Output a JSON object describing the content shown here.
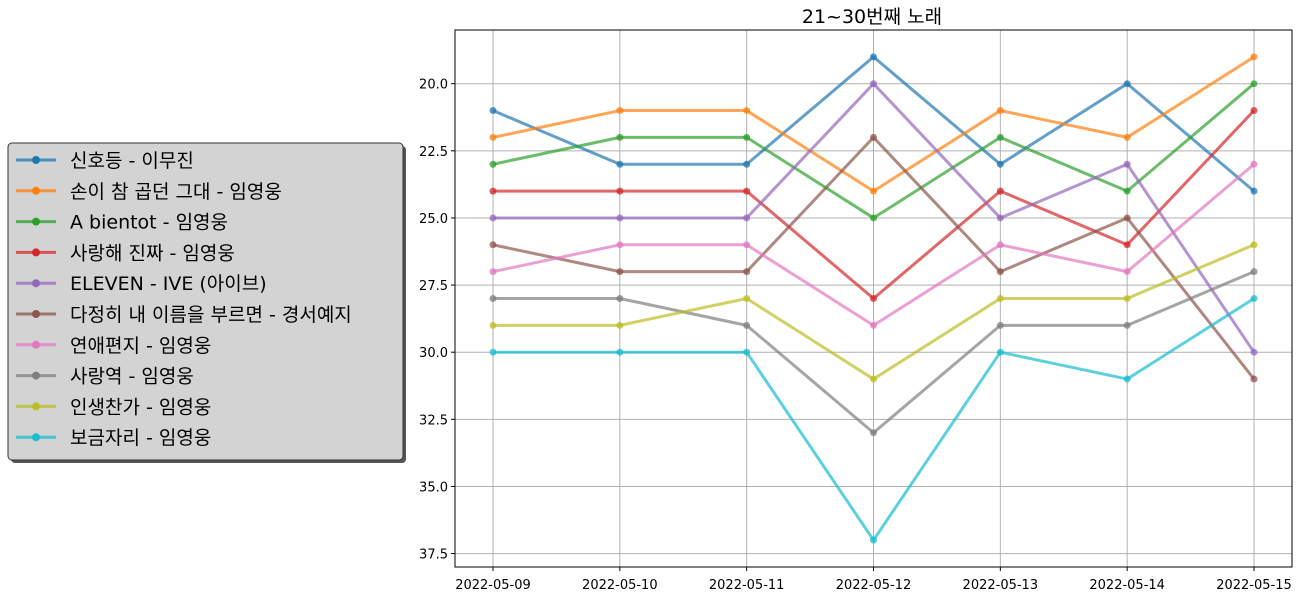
{
  "chart_data": {
    "type": "line",
    "title": "21~30번째 노래",
    "xlabel": "",
    "ylabel": "",
    "y_inverted": true,
    "ylim": [
      38,
      18
    ],
    "yticks": [
      20.0,
      22.5,
      25.0,
      27.5,
      30.0,
      32.5,
      35.0,
      37.5
    ],
    "ytick_labels": [
      "20.0",
      "22.5",
      "25.0",
      "27.5",
      "30.0",
      "32.5",
      "35.0",
      "37.5"
    ],
    "grid": true,
    "legend_placement": "center-left (outside plot)",
    "categories": [
      "2022-05-09",
      "2022-05-10",
      "2022-05-11",
      "2022-05-12",
      "2022-05-13",
      "2022-05-14",
      "2022-05-15"
    ],
    "series": [
      {
        "name": "신호등 - 이무진",
        "color": "#1f77b4",
        "values": [
          21,
          23,
          23,
          19,
          23,
          20,
          24
        ]
      },
      {
        "name": "손이 참 곱던 그대 - 임영웅",
        "color": "#ff7f0e",
        "values": [
          22,
          21,
          21,
          24,
          21,
          22,
          19
        ]
      },
      {
        "name": "A bientot - 임영웅",
        "color": "#2ca02c",
        "values": [
          23,
          22,
          22,
          25,
          22,
          24,
          20
        ]
      },
      {
        "name": "사랑해 진짜 - 임영웅",
        "color": "#d62728",
        "values": [
          24,
          24,
          24,
          28,
          24,
          26,
          21
        ]
      },
      {
        "name": "ELEVEN - IVE (아이브)",
        "color": "#9467bd",
        "values": [
          25,
          25,
          25,
          20,
          25,
          23,
          30
        ]
      },
      {
        "name": "다정히 내 이름을 부르면 - 경서예지",
        "color": "#8c564b",
        "values": [
          26,
          27,
          27,
          22,
          27,
          25,
          31
        ]
      },
      {
        "name": "연애편지 - 임영웅",
        "color": "#e377c2",
        "values": [
          27,
          26,
          26,
          29,
          26,
          27,
          23
        ]
      },
      {
        "name": "사랑역 - 임영웅",
        "color": "#7f7f7f",
        "values": [
          28,
          28,
          29,
          33,
          29,
          29,
          27
        ]
      },
      {
        "name": "인생찬가 - 임영웅",
        "color": "#bcbd22",
        "values": [
          29,
          29,
          28,
          31,
          28,
          28,
          26
        ]
      },
      {
        "name": "보금자리 - 임영웅",
        "color": "#17becf",
        "values": [
          30,
          30,
          30,
          37,
          30,
          31,
          28
        ]
      }
    ]
  }
}
